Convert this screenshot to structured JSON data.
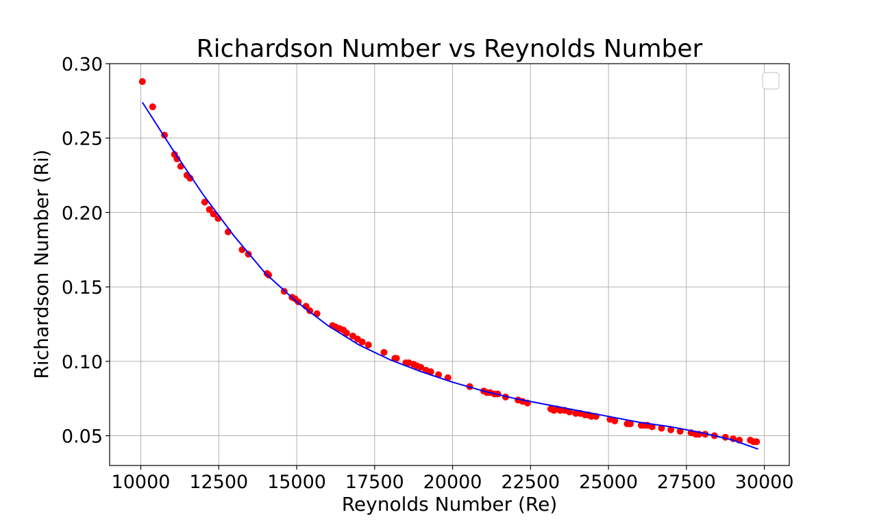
{
  "chart_data": {
    "type": "scatter",
    "title": "Richardson Number vs Reynolds Number",
    "xlabel": "Reynolds Number (Re)",
    "ylabel": "Richardson Number (Ri)",
    "xlim": [
      9000,
      30800
    ],
    "ylim": [
      0.03,
      0.3
    ],
    "x_ticks": [
      10000,
      12500,
      15000,
      17500,
      20000,
      22500,
      25000,
      27500,
      30000
    ],
    "y_ticks": [
      0.05,
      0.1,
      0.15,
      0.2,
      0.25,
      0.3
    ],
    "x_tick_labels": [
      "10000",
      "12500",
      "15000",
      "17500",
      "20000",
      "22500",
      "25000",
      "27500",
      "30000"
    ],
    "y_tick_labels": [
      "0.05",
      "0.10",
      "0.15",
      "0.20",
      "0.25",
      "0.30"
    ],
    "grid": true,
    "legend": {
      "placement": "top-right",
      "entries": []
    },
    "colors": {
      "scatter": "#ff0000",
      "fit_line": "#0000ff"
    },
    "series": [
      {
        "type": "scatter",
        "x": [
          10050,
          10380,
          10760,
          11080,
          11160,
          11280,
          11480,
          11580,
          12050,
          12200,
          12330,
          12480,
          12800,
          13250,
          13450,
          14050,
          14100,
          14600,
          14850,
          14950,
          15050,
          15300,
          15420,
          15650,
          16150,
          16250,
          16380,
          16500,
          16600,
          16800,
          16950,
          17100,
          17300,
          17800,
          18150,
          18200,
          18500,
          18600,
          18750,
          18850,
          18980,
          19150,
          19300,
          19550,
          19850,
          20550,
          21000,
          21100,
          21200,
          21350,
          21450,
          21700,
          22100,
          22250,
          22400,
          23150,
          23250,
          23350,
          23450,
          23600,
          23750,
          23950,
          24100,
          24250,
          24350,
          24450,
          24600,
          25050,
          25200,
          25600,
          25700,
          26050,
          26150,
          26250,
          26400,
          26700,
          27000,
          27300,
          27650,
          27800,
          27900,
          28100,
          28400,
          28750,
          29000,
          29200,
          29550,
          29650,
          29750
        ],
        "y": [
          0.288,
          0.271,
          0.252,
          0.239,
          0.236,
          0.231,
          0.225,
          0.223,
          0.207,
          0.202,
          0.199,
          0.196,
          0.187,
          0.175,
          0.172,
          0.159,
          0.158,
          0.147,
          0.143,
          0.142,
          0.14,
          0.137,
          0.134,
          0.132,
          0.124,
          0.123,
          0.122,
          0.121,
          0.119,
          0.117,
          0.115,
          0.113,
          0.111,
          0.106,
          0.102,
          0.102,
          0.099,
          0.099,
          0.098,
          0.097,
          0.096,
          0.094,
          0.093,
          0.091,
          0.089,
          0.083,
          0.08,
          0.079,
          0.079,
          0.078,
          0.078,
          0.076,
          0.074,
          0.073,
          0.072,
          0.068,
          0.067,
          0.068,
          0.067,
          0.067,
          0.066,
          0.065,
          0.065,
          0.064,
          0.064,
          0.063,
          0.063,
          0.061,
          0.06,
          0.058,
          0.058,
          0.057,
          0.057,
          0.057,
          0.056,
          0.055,
          0.054,
          0.053,
          0.052,
          0.051,
          0.051,
          0.051,
          0.05,
          0.049,
          0.048,
          0.047,
          0.047,
          0.046,
          0.046
        ]
      },
      {
        "type": "line",
        "x": [
          10050,
          11000,
          12000,
          13000,
          14000,
          15000,
          16000,
          17000,
          18000,
          19000,
          20000,
          21000,
          22000,
          23000,
          24000,
          25000,
          26000,
          27000,
          28000,
          29000,
          29800
        ],
        "y": [
          0.274,
          0.243,
          0.212,
          0.184,
          0.159,
          0.14,
          0.124,
          0.111,
          0.101,
          0.093,
          0.086,
          0.08,
          0.075,
          0.071,
          0.067,
          0.063,
          0.059,
          0.056,
          0.052,
          0.047,
          0.041
        ]
      }
    ]
  }
}
